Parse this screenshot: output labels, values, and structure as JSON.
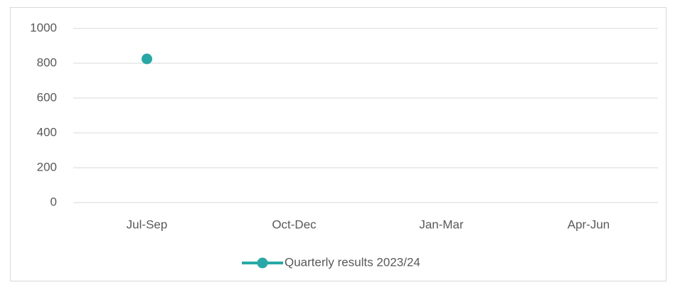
{
  "chart_data": {
    "type": "line",
    "categories": [
      "Jul-Sep",
      "Oct-Dec",
      "Jan-Mar",
      "Apr-Jun"
    ],
    "series": [
      {
        "name": "Quarterly results 2023/24",
        "color": "#26a9a6",
        "values": [
          825,
          null,
          null,
          null
        ]
      }
    ],
    "ylim": [
      0,
      1000
    ],
    "yticks": [
      0,
      200,
      400,
      600,
      800,
      1000
    ],
    "grid": true,
    "legend": "bottom"
  }
}
